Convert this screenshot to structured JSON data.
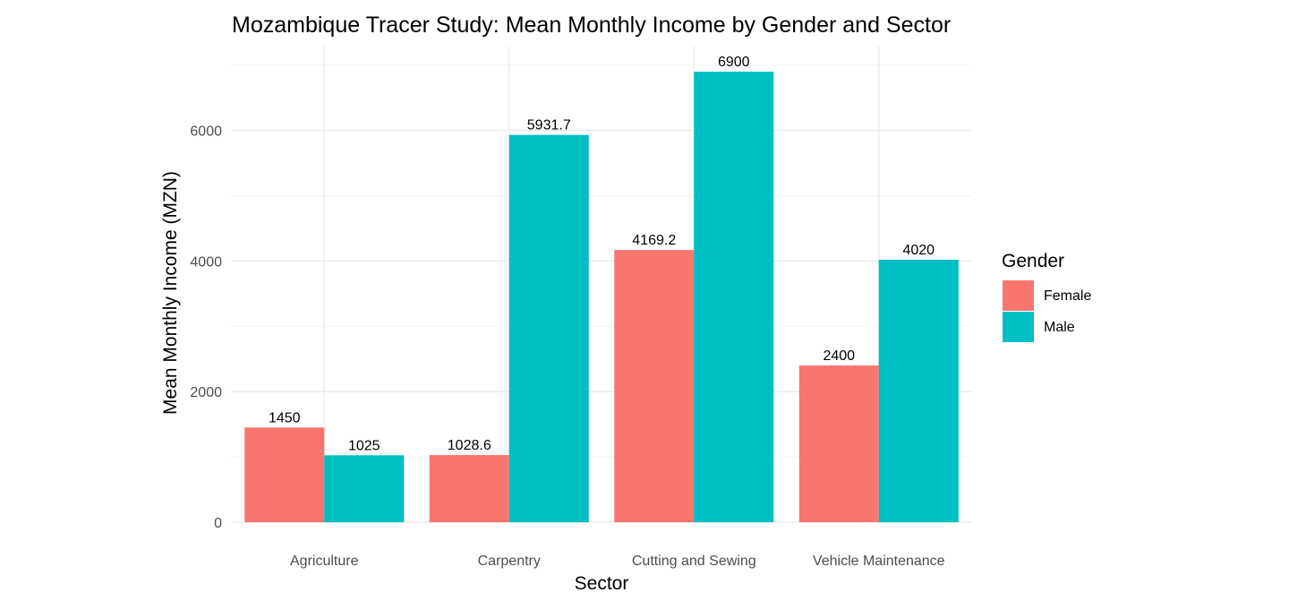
{
  "chart_data": {
    "type": "bar",
    "title": "Mozambique Tracer Study: Mean Monthly Income by Gender and Sector",
    "xlabel": "Sector",
    "ylabel": "Mean Monthly Income (MZN)",
    "categories": [
      "Agriculture",
      "Carpentry",
      "Cutting and Sewing",
      "Vehicle Maintenance"
    ],
    "series": [
      {
        "name": "Female",
        "color": "#F8766D",
        "values": [
          1450,
          1028.6,
          4169.2,
          2400
        ],
        "labels": [
          "1450",
          "1028.6",
          "4169.2",
          "2400"
        ]
      },
      {
        "name": "Male",
        "color": "#00BFC4",
        "values": [
          1025,
          5931.7,
          6900,
          4020
        ],
        "labels": [
          "1025",
          "5931.7",
          "6900",
          "4020"
        ]
      }
    ],
    "ylim": [
      0,
      7000
    ],
    "y_ticks": [
      0,
      2000,
      4000,
      6000
    ],
    "y_tick_labels": [
      "0",
      "2000",
      "4000",
      "6000"
    ],
    "grid": true,
    "legend": {
      "title": "Gender",
      "position": "right"
    }
  }
}
